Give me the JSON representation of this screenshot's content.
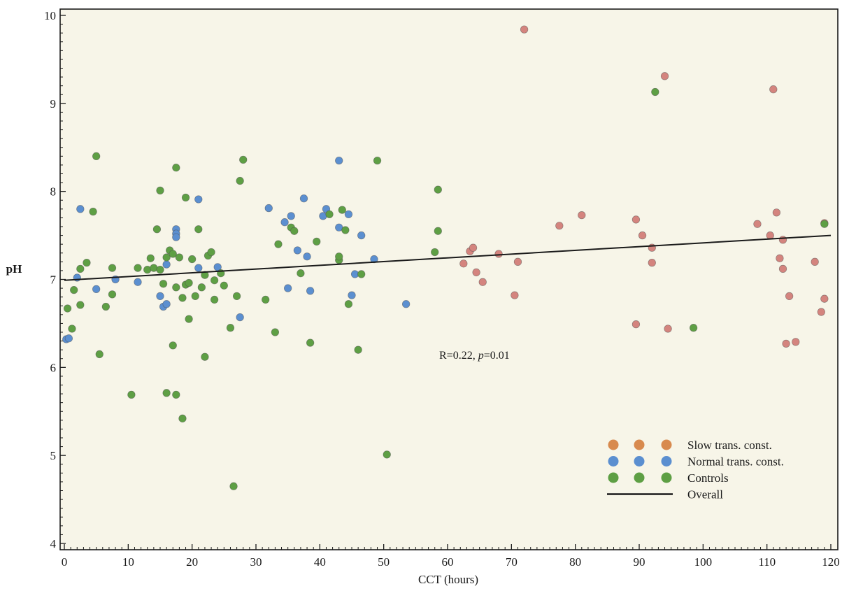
{
  "chart_data": {
    "type": "scatter",
    "title": "",
    "xlabel": "CCT (hours)",
    "ylabel": "pH",
    "xlim": [
      0,
      120
    ],
    "ylim": [
      4,
      10
    ],
    "x_ticks": [
      0,
      10,
      20,
      30,
      40,
      50,
      60,
      70,
      80,
      90,
      100,
      110,
      120
    ],
    "y_ticks": [
      4,
      5,
      6,
      7,
      8,
      9,
      10
    ],
    "grid": false,
    "legend_position": "bottom-right",
    "annotation": {
      "prefix": "R=0.22, ",
      "p_symbol": "p",
      "suffix": "=0.01"
    },
    "colors": {
      "background": "#f7f5e8",
      "slow": "#d88a4e",
      "slow_points": "#d4847e",
      "normal": "#5b8fd0",
      "controls": "#5e9f44",
      "line": "#1a1a1a"
    },
    "legend": [
      {
        "label": "Slow trans. const.",
        "type": "marker",
        "color_key": "slow"
      },
      {
        "label": "Normal trans. const.",
        "type": "marker",
        "color_key": "normal"
      },
      {
        "label": "Controls",
        "type": "marker",
        "color_key": "controls"
      },
      {
        "label": "Overall",
        "type": "line",
        "color_key": "line"
      }
    ],
    "trend_line": {
      "x": [
        0,
        120
      ],
      "y": [
        6.99,
        7.5
      ]
    },
    "series": [
      {
        "name": "Slow trans. const.",
        "color_key": "slow_points",
        "points": [
          [
            62.5,
            7.18
          ],
          [
            63.5,
            7.32
          ],
          [
            64,
            7.36
          ],
          [
            64.5,
            7.08
          ],
          [
            65.5,
            6.97
          ],
          [
            68,
            7.29
          ],
          [
            70.5,
            6.82
          ],
          [
            71,
            7.2
          ],
          [
            72,
            9.84
          ],
          [
            77.5,
            7.61
          ],
          [
            81,
            7.73
          ],
          [
            89.5,
            7.68
          ],
          [
            89.5,
            6.49
          ],
          [
            90.5,
            7.5
          ],
          [
            92,
            7.36
          ],
          [
            92,
            7.19
          ],
          [
            94,
            9.31
          ],
          [
            94.5,
            6.44
          ],
          [
            108.5,
            7.63
          ],
          [
            110.5,
            7.5
          ],
          [
            111,
            9.16
          ],
          [
            111.5,
            7.76
          ],
          [
            112,
            7.24
          ],
          [
            112.5,
            7.12
          ],
          [
            112.5,
            7.45
          ],
          [
            113,
            6.27
          ],
          [
            113.5,
            6.81
          ],
          [
            114.5,
            6.29
          ],
          [
            117.5,
            7.2
          ],
          [
            118.5,
            6.63
          ],
          [
            119,
            6.78
          ],
          [
            119,
            7.64
          ]
        ]
      },
      {
        "name": "Normal trans. const.",
        "color_key": "normal",
        "points": [
          [
            0.3,
            6.32
          ],
          [
            0.7,
            6.33
          ],
          [
            2.5,
            7.8
          ],
          [
            2,
            7.02
          ],
          [
            5,
            6.89
          ],
          [
            8,
            7.0
          ],
          [
            11.5,
            6.97
          ],
          [
            15,
            6.81
          ],
          [
            15.5,
            6.69
          ],
          [
            16,
            6.72
          ],
          [
            16,
            7.17
          ],
          [
            17.5,
            7.57
          ],
          [
            17.5,
            7.52
          ],
          [
            17.5,
            7.48
          ],
          [
            21,
            7.91
          ],
          [
            21,
            7.13
          ],
          [
            24,
            7.14
          ],
          [
            27.5,
            6.57
          ],
          [
            32,
            7.81
          ],
          [
            34.5,
            7.65
          ],
          [
            35,
            6.9
          ],
          [
            35.5,
            7.72
          ],
          [
            36.5,
            7.33
          ],
          [
            37.5,
            7.92
          ],
          [
            38,
            7.26
          ],
          [
            38.5,
            6.87
          ],
          [
            40.5,
            7.72
          ],
          [
            41,
            7.8
          ],
          [
            43,
            8.35
          ],
          [
            43,
            7.59
          ],
          [
            44.5,
            7.74
          ],
          [
            45,
            6.82
          ],
          [
            45.5,
            7.06
          ],
          [
            46.5,
            7.5
          ],
          [
            48.5,
            7.23
          ],
          [
            53.5,
            6.72
          ]
        ]
      },
      {
        "name": "Controls",
        "color_key": "controls",
        "points": [
          [
            0.5,
            6.67
          ],
          [
            1.2,
            6.44
          ],
          [
            1.5,
            6.88
          ],
          [
            2.5,
            7.12
          ],
          [
            2.5,
            6.71
          ],
          [
            3.5,
            7.19
          ],
          [
            4.5,
            7.77
          ],
          [
            5,
            8.4
          ],
          [
            5.5,
            6.15
          ],
          [
            6.5,
            6.69
          ],
          [
            7.5,
            6.83
          ],
          [
            7.5,
            7.13
          ],
          [
            10.5,
            5.69
          ],
          [
            11.5,
            7.13
          ],
          [
            13,
            7.11
          ],
          [
            13.5,
            7.24
          ],
          [
            14,
            7.13
          ],
          [
            14.5,
            7.57
          ],
          [
            15,
            8.01
          ],
          [
            15,
            7.11
          ],
          [
            15.5,
            6.95
          ],
          [
            16,
            7.25
          ],
          [
            16,
            5.71
          ],
          [
            16.5,
            7.33
          ],
          [
            17,
            6.25
          ],
          [
            17,
            7.29
          ],
          [
            17.5,
            5.69
          ],
          [
            17.5,
            8.27
          ],
          [
            17.5,
            6.91
          ],
          [
            18,
            7.25
          ],
          [
            18.5,
            5.42
          ],
          [
            18.5,
            6.79
          ],
          [
            19,
            7.93
          ],
          [
            19,
            6.94
          ],
          [
            19.5,
            6.55
          ],
          [
            19.5,
            6.96
          ],
          [
            20,
            7.23
          ],
          [
            20.5,
            6.81
          ],
          [
            21,
            7.57
          ],
          [
            21.5,
            6.91
          ],
          [
            22,
            6.12
          ],
          [
            22,
            7.05
          ],
          [
            22.5,
            7.27
          ],
          [
            23,
            7.31
          ],
          [
            23.5,
            6.99
          ],
          [
            23.5,
            6.77
          ],
          [
            24.5,
            7.07
          ],
          [
            25,
            6.93
          ],
          [
            26,
            6.45
          ],
          [
            26.5,
            4.65
          ],
          [
            27,
            6.81
          ],
          [
            27.5,
            8.12
          ],
          [
            28,
            8.36
          ],
          [
            31.5,
            6.77
          ],
          [
            33,
            6.4
          ],
          [
            33.5,
            7.4
          ],
          [
            35.5,
            7.59
          ],
          [
            36,
            7.55
          ],
          [
            37,
            7.07
          ],
          [
            38.5,
            6.28
          ],
          [
            39.5,
            7.43
          ],
          [
            41.5,
            7.74
          ],
          [
            43,
            7.22
          ],
          [
            43,
            7.26
          ],
          [
            43.5,
            7.79
          ],
          [
            44,
            7.56
          ],
          [
            44.5,
            6.72
          ],
          [
            46,
            6.2
          ],
          [
            46.5,
            7.06
          ],
          [
            49,
            8.35
          ],
          [
            50.5,
            5.01
          ],
          [
            58,
            7.31
          ],
          [
            58.5,
            7.55
          ],
          [
            58.5,
            8.02
          ],
          [
            92.5,
            9.13
          ],
          [
            98.5,
            6.45
          ],
          [
            119,
            7.63
          ]
        ]
      }
    ]
  }
}
